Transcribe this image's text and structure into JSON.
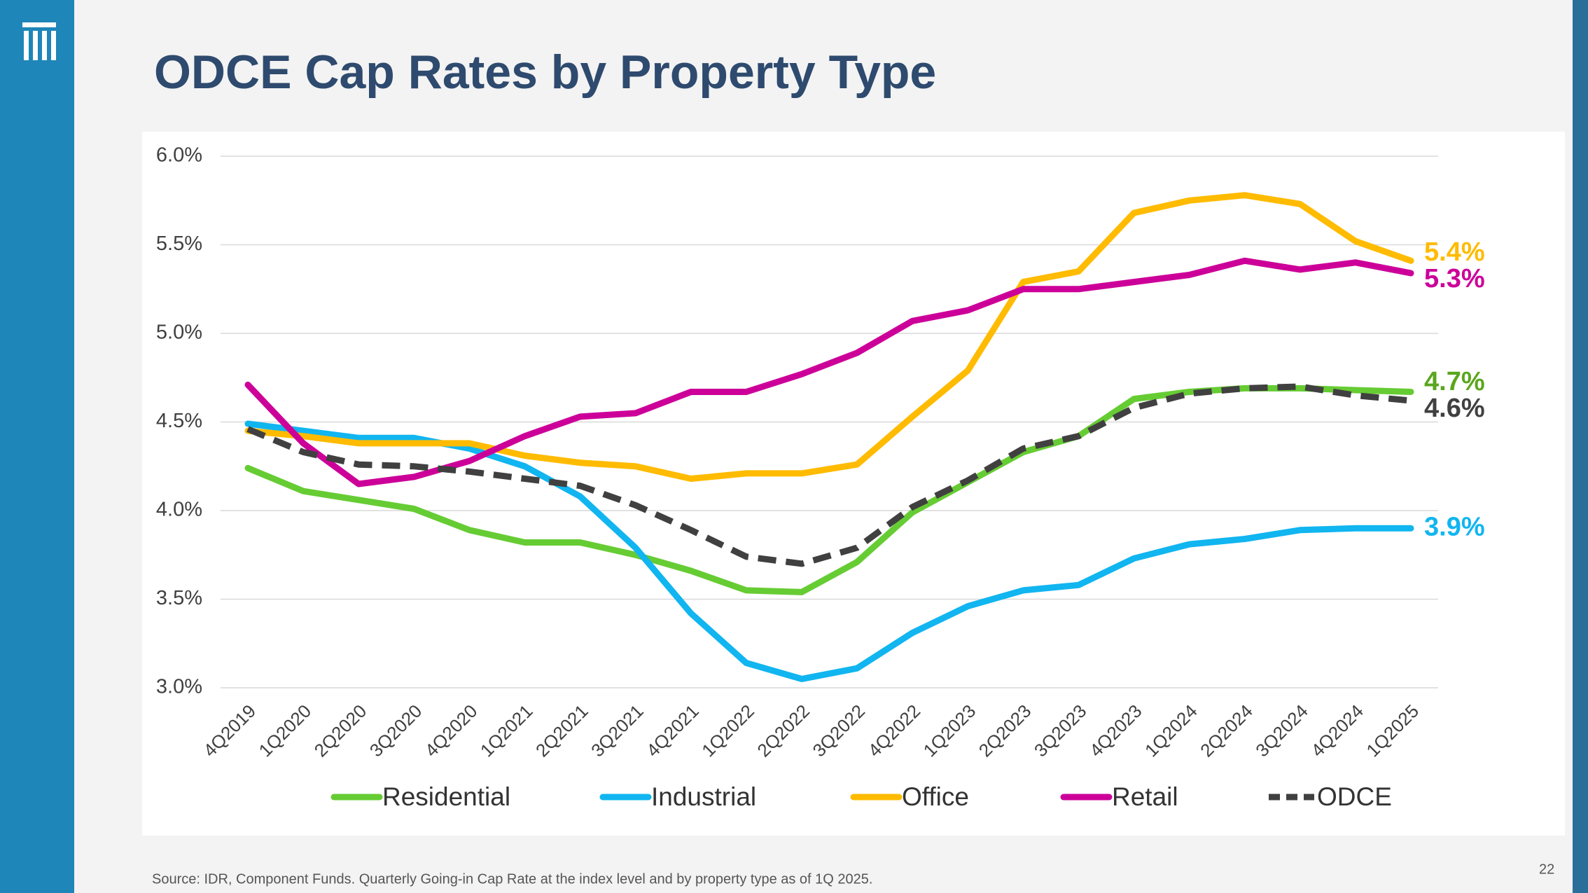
{
  "chart_data": {
    "type": "line",
    "title": "ODCE Cap Rates by Property Type",
    "source": "Source: IDR, Component Funds. Quarterly Going-in Cap Rate at the index level and by property type as of 1Q 2025.",
    "page_number": "22",
    "categories": [
      "4Q2019",
      "1Q2020",
      "2Q2020",
      "3Q2020",
      "4Q2020",
      "1Q2021",
      "2Q2021",
      "3Q2021",
      "4Q2021",
      "1Q2022",
      "2Q2022",
      "3Q2022",
      "4Q2022",
      "1Q2023",
      "2Q2023",
      "3Q2023",
      "4Q2023",
      "1Q2024",
      "2Q2024",
      "3Q2024",
      "4Q2024",
      "1Q2025"
    ],
    "ylim": [
      3.0,
      6.0
    ],
    "yticks": [
      {
        "value": 3.0,
        "label": "3.0%"
      },
      {
        "value": 3.5,
        "label": "3.5%"
      },
      {
        "value": 4.0,
        "label": "4.0%"
      },
      {
        "value": 4.5,
        "label": "4.5%"
      },
      {
        "value": 5.0,
        "label": "5.0%"
      },
      {
        "value": 5.5,
        "label": "5.5%"
      },
      {
        "value": 6.0,
        "label": "6.0%"
      }
    ],
    "grid": true,
    "legend": "bottom",
    "series": [
      {
        "name": "Residential",
        "color": "#66cc33",
        "label_color": "#5aa61e",
        "dashed": false,
        "values": [
          4.24,
          4.11,
          4.06,
          4.01,
          3.89,
          3.82,
          3.82,
          3.75,
          3.66,
          3.55,
          3.54,
          3.71,
          3.99,
          4.16,
          4.33,
          4.42,
          4.63,
          4.67,
          4.69,
          4.69,
          4.68,
          4.67
        ],
        "value_labels": [
          null,
          null,
          null,
          null,
          null,
          null,
          null,
          null,
          null,
          null,
          null,
          null,
          null,
          null,
          null,
          null,
          null,
          null,
          null,
          null,
          null,
          "4.7%"
        ]
      },
      {
        "name": "Industrial",
        "color": "#11b5f0",
        "label_color": "#11b5f0",
        "dashed": false,
        "values": [
          4.49,
          4.45,
          4.41,
          4.41,
          4.35,
          4.25,
          4.08,
          3.79,
          3.42,
          3.14,
          3.05,
          3.11,
          3.31,
          3.46,
          3.55,
          3.58,
          3.73,
          3.81,
          3.84,
          3.89,
          3.9,
          3.9
        ],
        "value_labels": [
          null,
          null,
          null,
          null,
          null,
          null,
          null,
          null,
          null,
          null,
          null,
          null,
          null,
          null,
          null,
          null,
          null,
          null,
          null,
          null,
          null,
          "3.9%"
        ]
      },
      {
        "name": "Office",
        "color": "#ffbb00",
        "label_color": "#ffbb00",
        "dashed": false,
        "values": [
          4.45,
          4.42,
          4.38,
          4.38,
          4.38,
          4.31,
          4.27,
          4.25,
          4.18,
          4.21,
          4.21,
          4.26,
          4.53,
          4.79,
          5.29,
          5.35,
          5.68,
          5.75,
          5.78,
          5.73,
          5.52,
          5.41
        ],
        "value_labels": [
          null,
          null,
          null,
          null,
          null,
          null,
          null,
          null,
          null,
          null,
          null,
          null,
          null,
          null,
          null,
          null,
          null,
          null,
          null,
          null,
          null,
          "5.4%"
        ]
      },
      {
        "name": "Retail",
        "color": "#cc0099",
        "label_color": "#cc0099",
        "dashed": false,
        "values": [
          4.71,
          4.38,
          4.15,
          4.19,
          4.28,
          4.42,
          4.53,
          4.55,
          4.67,
          4.67,
          4.77,
          4.89,
          5.07,
          5.13,
          5.25,
          5.25,
          5.29,
          5.33,
          5.41,
          5.36,
          5.4,
          5.34
        ],
        "value_labels": [
          null,
          null,
          null,
          null,
          null,
          null,
          null,
          null,
          null,
          null,
          null,
          null,
          null,
          null,
          null,
          null,
          null,
          null,
          null,
          null,
          null,
          "5.3%"
        ]
      },
      {
        "name": "ODCE",
        "color": "#404040",
        "label_color": "#404040",
        "dashed": true,
        "values": [
          4.46,
          4.33,
          4.26,
          4.25,
          4.22,
          4.18,
          4.14,
          4.03,
          3.89,
          3.74,
          3.7,
          3.79,
          4.02,
          4.17,
          4.35,
          4.42,
          4.58,
          4.66,
          4.69,
          4.7,
          4.65,
          4.62
        ],
        "value_labels": [
          null,
          null,
          null,
          null,
          null,
          null,
          null,
          null,
          null,
          null,
          null,
          null,
          null,
          null,
          null,
          null,
          null,
          null,
          null,
          null,
          null,
          "4.6%"
        ]
      }
    ]
  }
}
